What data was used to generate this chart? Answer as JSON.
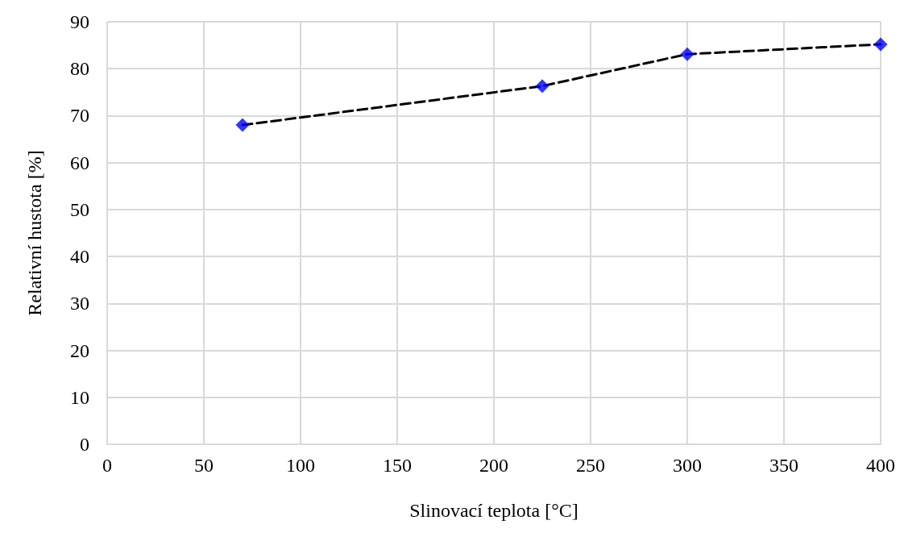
{
  "chart_data": {
    "type": "line",
    "xlabel": "Slinovací teplota [°C]",
    "ylabel": "Relativní hustota [%]",
    "x": [
      70,
      225,
      300,
      400
    ],
    "series": [
      {
        "color": "#000000",
        "line_style": "dashed",
        "marker": "none",
        "values": [
          68.0,
          76.3,
          83.1,
          85.2
        ]
      },
      {
        "type": "scatter",
        "color": "#0000ff",
        "marker": "diamond",
        "values": [
          68.0,
          76.3,
          83.1,
          85.2
        ]
      }
    ],
    "xlim": [
      0,
      400
    ],
    "xticks": [
      0,
      50,
      100,
      150,
      200,
      250,
      300,
      350,
      400
    ],
    "ylim": [
      0,
      90
    ],
    "yticks": [
      0,
      10,
      20,
      30,
      40,
      50,
      60,
      70,
      80,
      90
    ],
    "grid": true
  }
}
